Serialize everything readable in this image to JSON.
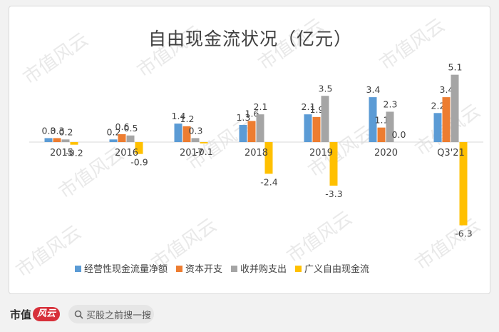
{
  "chart_data": {
    "type": "bar",
    "title": "自由现金流状况（亿元）",
    "categories": [
      "2015",
      "2016",
      "2017",
      "2018",
      "2019",
      "2020",
      "Q3'21"
    ],
    "series": [
      {
        "name": "经营性现金流量净额",
        "color": "#5b9bd5",
        "values": [
          0.3,
          0.2,
          1.4,
          1.3,
          2.1,
          3.4,
          2.2
        ]
      },
      {
        "name": "资本开支",
        "color": "#ed7d31",
        "values": [
          0.3,
          0.6,
          1.2,
          1.6,
          1.9,
          1.1,
          3.4
        ]
      },
      {
        "name": "收并购支出",
        "color": "#a5a5a5",
        "values": [
          0.2,
          0.5,
          0.3,
          2.1,
          3.5,
          2.3,
          5.1
        ]
      },
      {
        "name": "广义自由现金流",
        "color": "#ffc000",
        "values": [
          -0.2,
          -0.9,
          -0.1,
          -2.4,
          -3.3,
          0.0,
          -6.3
        ]
      }
    ],
    "ylim": [
      -6.5,
      5.6
    ],
    "grid": false,
    "legend_position": "bottom"
  },
  "watermark": "市值风云",
  "footer": {
    "brand_text": "市值",
    "brand_mark": "风云",
    "search_icon": "search-icon",
    "search_placeholder": "买股之前搜一搜"
  }
}
